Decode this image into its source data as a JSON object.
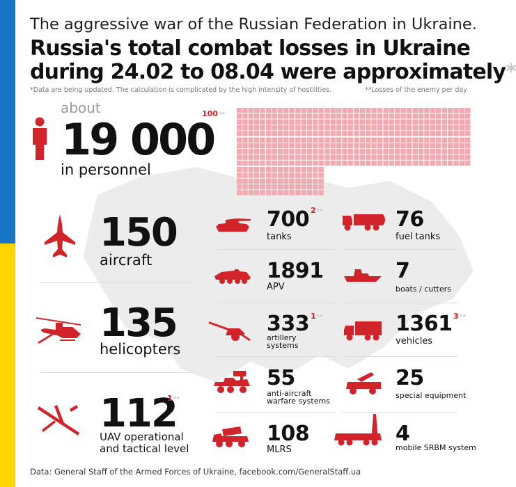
{
  "header": {
    "supertitle": "The aggressive war of the Russian Federation in Ukraine.",
    "headline_line1": "Russia's total combat losses in Ukraine",
    "headline_line2": "during 24.02 to 08.04 were approximately",
    "headline_mark": "*",
    "note_left": "*Data are being updated. The calculation is complicated by the high intensity of hostilities.",
    "note_right": "**Losses of the enemy per day"
  },
  "personnel": {
    "about": "about",
    "count": "19 000",
    "label": "in personnel",
    "daily": "100",
    "daily_mark": "**",
    "grid_units": 190
  },
  "items": {
    "aircraft": {
      "value": "150",
      "label": "aircraft"
    },
    "helicopters": {
      "value": "135",
      "label": "helicopters"
    },
    "uav": {
      "value": "112",
      "daily": "1",
      "mark": "**",
      "label_line1": "UAV operational",
      "label_line2": "and tactical level"
    },
    "tanks": {
      "value": "700",
      "daily": "2",
      "mark": "**",
      "label": "tanks"
    },
    "apv": {
      "value": "1891",
      "label": "APV"
    },
    "artillery": {
      "value": "333",
      "daily": "1",
      "mark": "**",
      "label_line1": "artillery",
      "label_line2": "systems"
    },
    "anti_aircraft": {
      "value": "55",
      "label_line1": "anti-aircraft",
      "label_line2": "warfare systems"
    },
    "mlrs": {
      "value": "108",
      "label": "MLRS"
    },
    "fuel_tanks": {
      "value": "76",
      "label": "fuel tanks"
    },
    "boats": {
      "value": "7",
      "label": "boats / cutters"
    },
    "vehicles": {
      "value": "1361",
      "daily": "3",
      "mark": "**",
      "label": "vehicles"
    },
    "special": {
      "value": "25",
      "label": "special equipment"
    },
    "srbm": {
      "value": "4",
      "label": "mobile SRBM system"
    }
  },
  "footer": "Data: General Staff of the Armed Forces of Ukraine, facebook.com/GeneralStaff.ua",
  "colors": {
    "accent": "#d1232a",
    "flag_blue": "#1a74c4",
    "flag_yellow": "#ffd500",
    "grid_cell": "#f2aab0"
  }
}
